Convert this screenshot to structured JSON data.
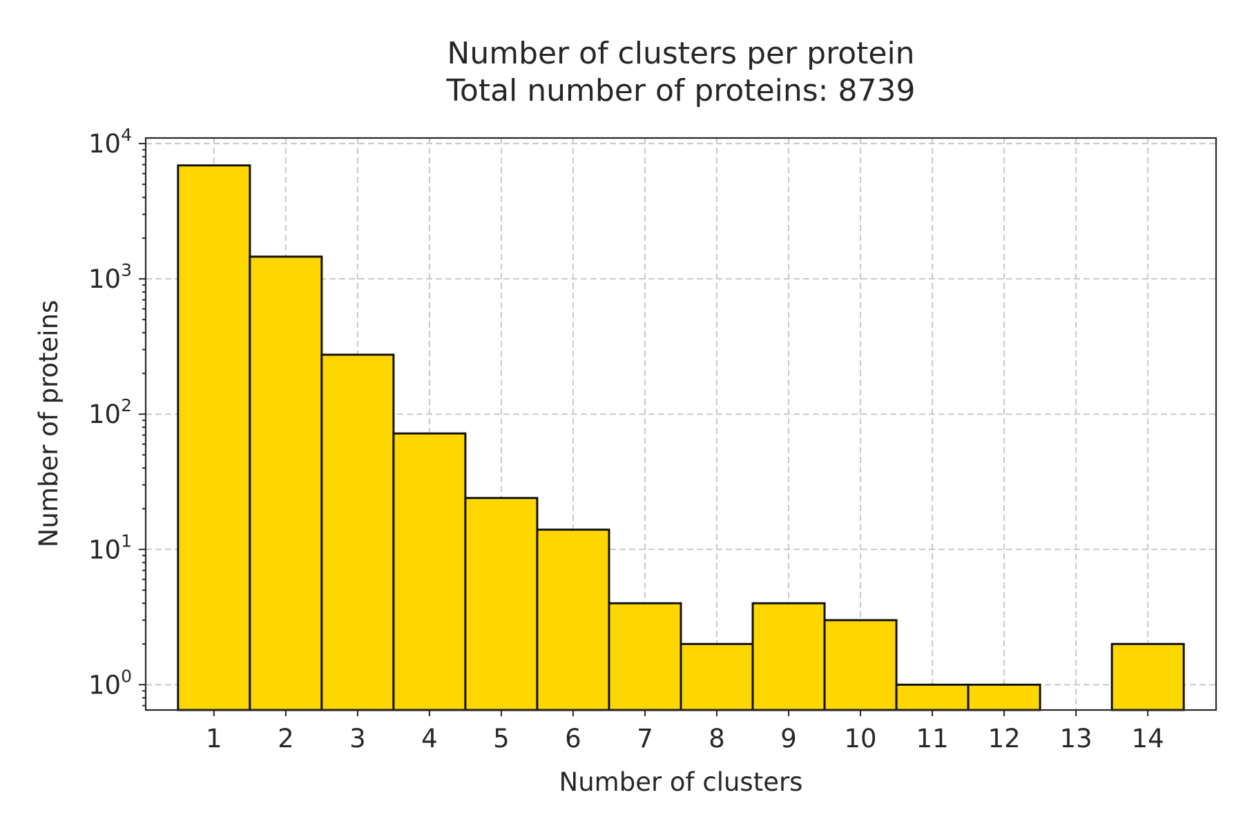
{
  "chart_data": {
    "type": "bar",
    "title": [
      "Number of clusters per protein",
      "Total number of proteins: 8739"
    ],
    "xlabel": "Number of clusters",
    "ylabel": "Number of proteins",
    "yscale": "log",
    "ylim": [
      0.65,
      11000
    ],
    "xlim": [
      0.05,
      14.95
    ],
    "categories": [
      "1",
      "2",
      "3",
      "4",
      "5",
      "6",
      "7",
      "8",
      "9",
      "10",
      "11",
      "12",
      "13",
      "14"
    ],
    "x": [
      1,
      2,
      3,
      4,
      5,
      6,
      7,
      8,
      9,
      10,
      11,
      12,
      13,
      14
    ],
    "values": [
      6900,
      1460,
      275,
      72,
      24,
      14,
      4,
      2,
      4,
      3,
      1,
      1,
      0,
      2
    ],
    "y_ticks": [
      {
        "value": 1,
        "base": "10",
        "exp": "0"
      },
      {
        "value": 10,
        "base": "10",
        "exp": "1"
      },
      {
        "value": 100,
        "base": "10",
        "exp": "2"
      },
      {
        "value": 1000,
        "base": "10",
        "exp": "3"
      },
      {
        "value": 10000,
        "base": "10",
        "exp": "4"
      }
    ],
    "bar_color": "#FFD700",
    "edge_color": "#111111",
    "grid": true,
    "legend": false
  }
}
